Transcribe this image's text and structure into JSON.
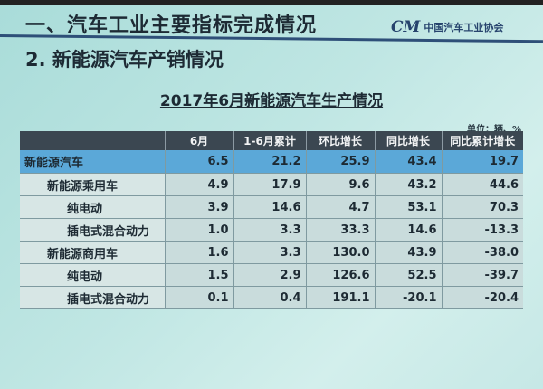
{
  "slide": {
    "section_title": "一、汽车工业主要指标完成情况",
    "subtitle": "2. 新能源汽车产销情况",
    "logo_text": "中国汽车工业协会",
    "logo_mark": "CM"
  },
  "table": {
    "title": "2017年6月新能源汽车生产情况",
    "unit": "单位：辆、%",
    "headers": [
      "",
      "6月",
      "1-6月累计",
      "环比增长",
      "同比增长",
      "同比累计增长"
    ],
    "rows": [
      {
        "label": "新能源汽车",
        "values": [
          "6.5",
          "21.2",
          "25.9",
          "43.4",
          "19.7"
        ]
      },
      {
        "label": "新能源乘用车",
        "values": [
          "4.9",
          "17.9",
          "9.6",
          "43.2",
          "44.6"
        ]
      },
      {
        "label": "纯电动",
        "values": [
          "3.9",
          "14.6",
          "4.7",
          "53.1",
          "70.3"
        ]
      },
      {
        "label": "插电式混合动力",
        "values": [
          "1.0",
          "3.3",
          "33.3",
          "14.6",
          "-13.3"
        ]
      },
      {
        "label": "新能源商用车",
        "values": [
          "1.6",
          "3.3",
          "130.0",
          "43.9",
          "-38.0"
        ]
      },
      {
        "label": "纯电动",
        "values": [
          "1.5",
          "2.9",
          "126.6",
          "52.5",
          "-39.7"
        ]
      },
      {
        "label": "插电式混合动力",
        "values": [
          "0.1",
          "0.4",
          "191.1",
          "-20.1",
          "-20.4"
        ]
      }
    ]
  }
}
